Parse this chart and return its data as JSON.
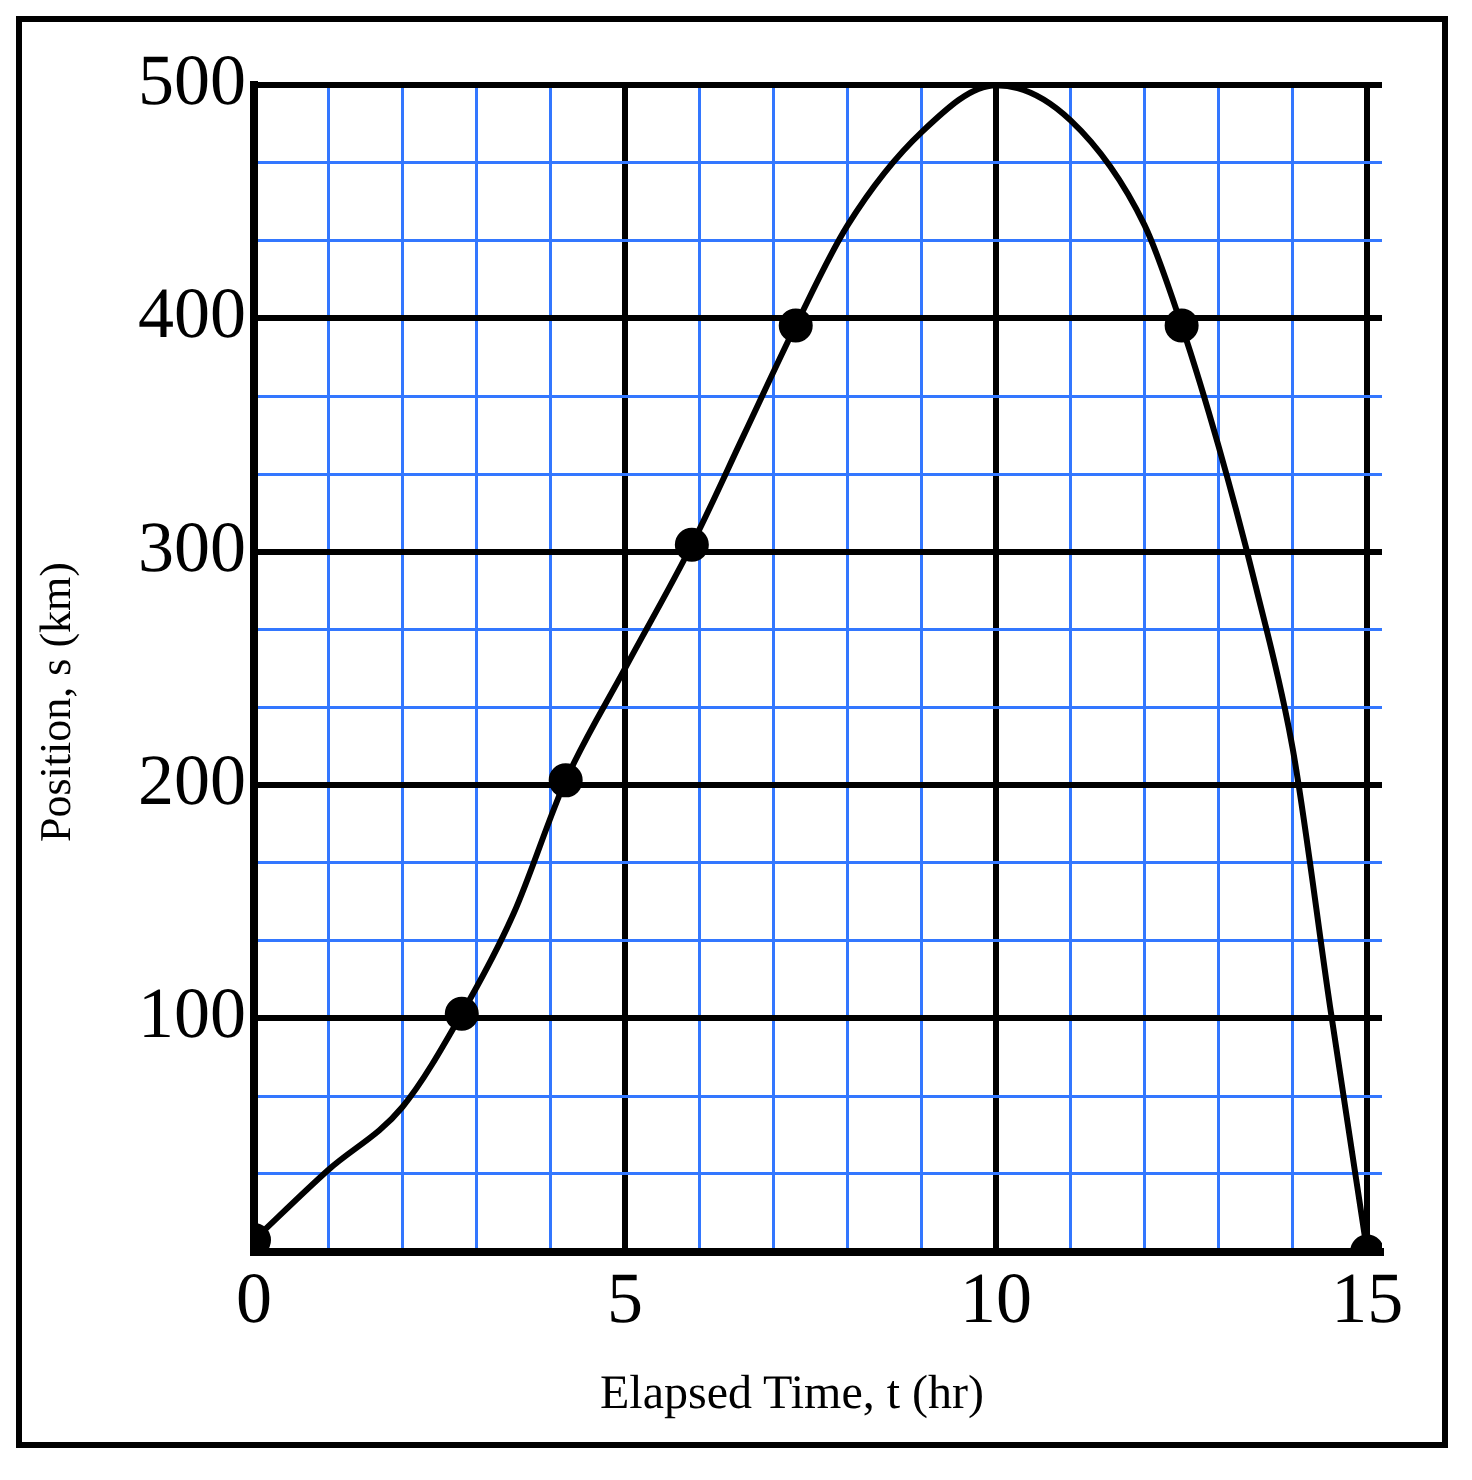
{
  "chart_data": {
    "type": "line",
    "xlabel": "Elapsed Time, t (hr)",
    "ylabel": "Position, s (km)",
    "xlim": [
      0,
      15.2
    ],
    "ylim": [
      0,
      500
    ],
    "xticks": [
      0,
      {
        "value": 1,
        "label": null
      },
      {
        "value": 2,
        "label": null
      },
      {
        "value": 3,
        "label": null
      },
      {
        "value": 4,
        "label": null
      },
      5,
      {
        "value": 6,
        "label": null
      },
      {
        "value": 7,
        "label": null
      },
      {
        "value": 8,
        "label": null
      },
      {
        "value": 9,
        "label": null
      },
      10,
      {
        "value": 11,
        "label": null
      },
      {
        "value": 12,
        "label": null
      },
      {
        "value": 13,
        "label": null
      },
      {
        "value": 14,
        "label": null
      },
      15
    ],
    "yticks": [
      {
        "value": 0,
        "label": null
      },
      {
        "value": 33.33,
        "label": null
      },
      {
        "value": 66.67,
        "label": null
      },
      100,
      {
        "value": 133.33,
        "label": null
      },
      {
        "value": 166.67,
        "label": null
      },
      200,
      {
        "value": 233.33,
        "label": null
      },
      {
        "value": 266.67,
        "label": null
      },
      300,
      {
        "value": 333.33,
        "label": null
      },
      {
        "value": 366.67,
        "label": null
      },
      400,
      {
        "value": 433.33,
        "label": null
      },
      {
        "value": 466.67,
        "label": null
      },
      500
    ],
    "grid": true,
    "legend": false,
    "series": [
      {
        "color": "#000000",
        "marker": "none",
        "x": [
          0,
          1,
          2,
          2.8,
          3.5,
          4.2,
          5,
          5.9,
          6.6,
          7.3,
          8,
          9,
          10,
          11,
          12,
          12.5,
          13,
          13.5,
          14,
          14.5,
          15
        ],
        "values": [
          5,
          35,
          62,
          102,
          145,
          202,
          250,
          303,
          350,
          397,
          440,
          480,
          500,
          485,
          440,
          397,
          345,
          285,
          215,
          105,
          0
        ]
      },
      {
        "type": "scatter",
        "color": "#000000",
        "marker": "circle",
        "x": [
          0,
          2.8,
          4.2,
          5.9,
          7.3,
          12.5,
          15
        ],
        "values": [
          5,
          102,
          202,
          303,
          397,
          397,
          0
        ]
      }
    ]
  }
}
